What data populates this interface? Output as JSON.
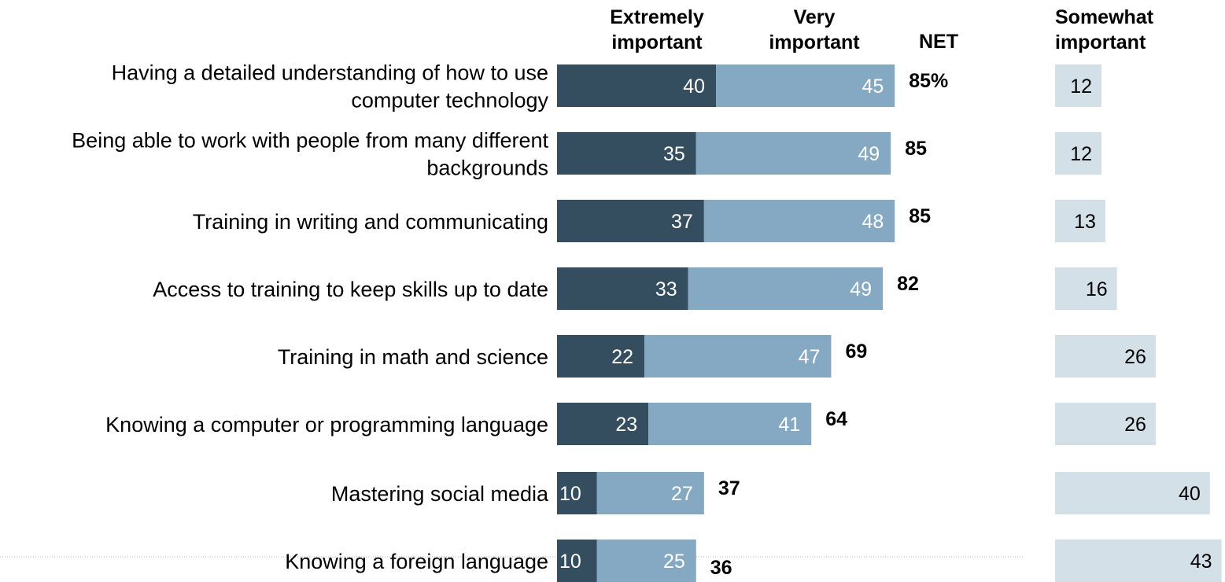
{
  "chart_data": {
    "type": "bar",
    "stacked": true,
    "orientation": "horizontal",
    "headers": {
      "extremely": [
        "Extremely",
        "important"
      ],
      "very": [
        "Very",
        "important"
      ],
      "net": "NET",
      "somewhat": [
        "Somewhat",
        "important"
      ]
    },
    "categories": [
      [
        "Having a detailed understanding of how to use",
        "computer technology"
      ],
      [
        "Being able to work with people from many different",
        "backgrounds"
      ],
      [
        "Training in writing and communicating"
      ],
      [
        "Access to training to keep skills up to date"
      ],
      [
        "Training in math and science"
      ],
      [
        "Knowing a computer or programming language"
      ],
      [
        "Mastering social media"
      ],
      [
        "Knowing a foreign language"
      ]
    ],
    "series": [
      {
        "name": "Extremely important",
        "color": "#344e60",
        "values": [
          40,
          35,
          37,
          33,
          22,
          23,
          10,
          10
        ]
      },
      {
        "name": "Very important",
        "color": "#85a9c2",
        "values": [
          45,
          49,
          48,
          49,
          47,
          41,
          27,
          25
        ]
      },
      {
        "name": "Somewhat important",
        "color": "#d3e0e8",
        "values": [
          12,
          12,
          13,
          16,
          26,
          26,
          40,
          43
        ]
      }
    ],
    "net": {
      "values": [
        85,
        85,
        85,
        82,
        69,
        64,
        37,
        36
      ],
      "labels": [
        "85%",
        "85",
        "85",
        "82",
        "69",
        "64",
        "37",
        "36"
      ]
    },
    "colors": {
      "dark": "#344e60",
      "light": "#85a9c2",
      "pale": "#d3e0e8",
      "divider": "#b0b0b0"
    }
  }
}
